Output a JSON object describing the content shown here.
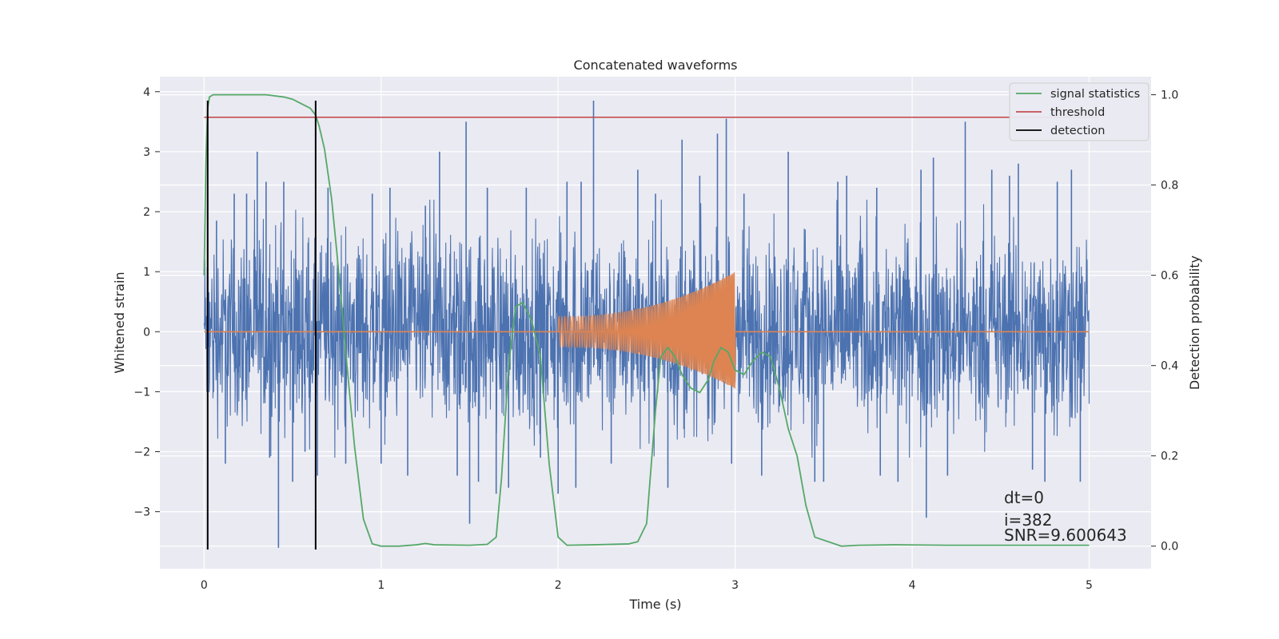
{
  "chart_data": {
    "type": "line",
    "title": "Concatenated waveforms",
    "xlabel": "Time (s)",
    "ylabel": "Whitened strain",
    "y2label": "Detection probability",
    "xlim": [
      -0.25,
      5.35
    ],
    "ylim": [
      -3.95,
      4.25
    ],
    "y2lim": [
      -0.05,
      1.04
    ],
    "xticks": [
      "0",
      "1",
      "2",
      "3",
      "4",
      "5"
    ],
    "yticks": [
      "4",
      "3",
      "2",
      "1",
      "0",
      "−1",
      "−2",
      "−3"
    ],
    "y2ticks": [
      "1.0",
      "0.8",
      "0.6",
      "0.4",
      "0.2",
      "0.0"
    ],
    "grid": true,
    "legend_position": "top-right",
    "colors": {
      "background": "#eaeaf2",
      "grid": "#ffffff",
      "strain": "#4c72b0",
      "template": "#dd8452",
      "signal_statistics": "#55a868",
      "threshold": "#c44e52",
      "detection": "#000000"
    },
    "series": [
      {
        "name": "signal statistics",
        "axis": "right",
        "x": [
          0.0,
          0.01,
          0.02,
          0.03,
          0.05,
          0.1,
          0.2,
          0.35,
          0.45,
          0.5,
          0.55,
          0.6,
          0.63,
          0.65,
          0.68,
          0.72,
          0.75,
          0.78,
          0.8,
          0.85,
          0.9,
          0.95,
          1.0,
          1.1,
          1.2,
          1.25,
          1.3,
          1.5,
          1.6,
          1.65,
          1.68,
          1.72,
          1.76,
          1.8,
          1.85,
          1.9,
          1.95,
          2.0,
          2.05,
          2.2,
          2.4,
          2.45,
          2.5,
          2.55,
          2.58,
          2.62,
          2.66,
          2.7,
          2.75,
          2.8,
          2.85,
          2.88,
          2.92,
          2.96,
          3.0,
          3.05,
          3.1,
          3.15,
          3.2,
          3.25,
          3.3,
          3.35,
          3.4,
          3.45,
          3.6,
          3.7,
          3.9,
          4.2,
          4.6,
          5.0
        ],
        "y": [
          0.6,
          0.85,
          0.97,
          0.995,
          1.0,
          1.0,
          1.0,
          1.0,
          0.995,
          0.99,
          0.98,
          0.97,
          0.955,
          0.93,
          0.88,
          0.77,
          0.65,
          0.52,
          0.43,
          0.22,
          0.06,
          0.005,
          0.0,
          0.0,
          0.003,
          0.006,
          0.003,
          0.002,
          0.004,
          0.02,
          0.15,
          0.4,
          0.53,
          0.54,
          0.5,
          0.42,
          0.18,
          0.02,
          0.002,
          0.003,
          0.005,
          0.01,
          0.05,
          0.3,
          0.42,
          0.44,
          0.42,
          0.38,
          0.35,
          0.34,
          0.37,
          0.41,
          0.44,
          0.43,
          0.39,
          0.38,
          0.41,
          0.43,
          0.42,
          0.35,
          0.26,
          0.2,
          0.09,
          0.02,
          0.0,
          0.002,
          0.003,
          0.002,
          0.002,
          0.002
        ]
      },
      {
        "name": "threshold",
        "axis": "right",
        "x": [
          0.0,
          5.05
        ],
        "y": [
          0.95,
          0.95
        ]
      },
      {
        "name": "detection",
        "axis": "left",
        "x": [
          0.02,
          0.63
        ],
        "ymin": -3.63,
        "ymax": 3.85
      },
      {
        "name": "",
        "axis": "left",
        "kind": "strain-noise",
        "x_range": [
          0.0,
          5.0
        ],
        "spikes": [
          [
            0.02,
            1.6
          ],
          [
            0.07,
            1.85
          ],
          [
            0.12,
            -2.2
          ],
          [
            0.17,
            2.3
          ],
          [
            0.24,
            2.3
          ],
          [
            0.3,
            3.0
          ],
          [
            0.35,
            2.5
          ],
          [
            0.37,
            -2.1
          ],
          [
            0.42,
            -3.6
          ],
          [
            0.45,
            2.5
          ],
          [
            0.5,
            -2.5
          ],
          [
            0.57,
            -2.0
          ],
          [
            0.64,
            -2.4
          ],
          [
            0.7,
            2.4
          ],
          [
            0.8,
            -2.2
          ],
          [
            0.95,
            2.3
          ],
          [
            1.0,
            -2.2
          ],
          [
            1.05,
            2.4
          ],
          [
            1.15,
            -2.4
          ],
          [
            1.25,
            2.1
          ],
          [
            1.33,
            3.0
          ],
          [
            1.43,
            -2.4
          ],
          [
            1.48,
            3.5
          ],
          [
            1.5,
            -3.2
          ],
          [
            1.55,
            -2.5
          ],
          [
            1.6,
            2.4
          ],
          [
            1.65,
            -2.7
          ],
          [
            1.72,
            -2.6
          ],
          [
            1.82,
            2.4
          ],
          [
            1.9,
            -2.1
          ],
          [
            2.0,
            -2.7
          ],
          [
            2.05,
            2.5
          ],
          [
            2.1,
            -2.6
          ],
          [
            2.13,
            2.5
          ],
          [
            2.2,
            3.85
          ],
          [
            2.3,
            -2.2
          ],
          [
            2.45,
            2.7
          ],
          [
            2.55,
            2.3
          ],
          [
            2.62,
            -2.6
          ],
          [
            2.7,
            3.2
          ],
          [
            2.8,
            2.6
          ],
          [
            2.9,
            3.3
          ],
          [
            2.95,
            3.55
          ],
          [
            2.98,
            -2.2
          ],
          [
            3.05,
            2.3
          ],
          [
            3.15,
            -2.4
          ],
          [
            3.3,
            3.0
          ],
          [
            3.45,
            -2.5
          ],
          [
            3.5,
            -2.5
          ],
          [
            3.58,
            2.5
          ],
          [
            3.63,
            2.6
          ],
          [
            3.8,
            2.4
          ],
          [
            3.82,
            -2.4
          ],
          [
            3.92,
            -2.5
          ],
          [
            4.05,
            2.7
          ],
          [
            4.08,
            -3.1
          ],
          [
            4.12,
            2.9
          ],
          [
            4.2,
            -2.4
          ],
          [
            4.3,
            3.5
          ],
          [
            4.45,
            2.7
          ],
          [
            4.55,
            2.6
          ],
          [
            4.6,
            2.8
          ],
          [
            4.68,
            -2.3
          ],
          [
            4.75,
            -2.5
          ],
          [
            4.82,
            2.5
          ],
          [
            4.9,
            2.7
          ],
          [
            4.95,
            -2.5
          ]
        ]
      },
      {
        "name": "",
        "axis": "left",
        "kind": "chirp-template",
        "x_range": [
          2.0,
          3.0
        ],
        "amp_start": 0.25,
        "amp_end_pos": 1.0,
        "amp_end_neg": -0.95,
        "cycles": 105
      }
    ],
    "legend": [
      "signal statistics",
      "threshold",
      "detection"
    ],
    "annotations": [
      "dt=0",
      "i=382",
      "SNR=9.600643"
    ]
  }
}
